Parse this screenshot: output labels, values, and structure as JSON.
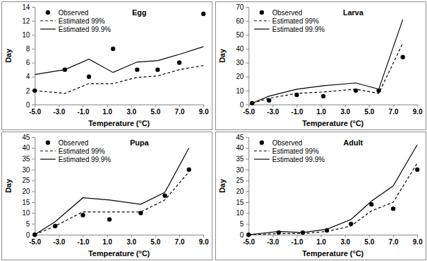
{
  "chart_data": [
    {
      "type": "line",
      "title": "Egg",
      "x_label": "Temperature (°C)",
      "y_label": "Day",
      "legend": "upper left",
      "grid": false,
      "x": [
        -5,
        -2.5,
        -0.5,
        1.5,
        3.5,
        5.2,
        7,
        9
      ],
      "xlim": [
        -5,
        9
      ],
      "xticks": [
        {
          "value": -5,
          "label": "-5.0"
        },
        {
          "value": -3,
          "label": "-3.0"
        },
        {
          "value": -1,
          "label": "-1.0"
        },
        {
          "value": 1,
          "label": "1.0"
        },
        {
          "value": 3,
          "label": "3.0"
        },
        {
          "value": 5,
          "label": "5.0"
        },
        {
          "value": 7,
          "label": "7.0"
        },
        {
          "value": 9,
          "label": "9.0"
        }
      ],
      "ylim": [
        0,
        14
      ],
      "yticks": [
        0,
        2,
        4,
        6,
        8,
        10,
        12,
        14
      ],
      "series": [
        {
          "name": "Observed",
          "type": "scatter",
          "marker": "circle",
          "color": "#000000",
          "values": [
            2,
            5,
            4,
            8,
            5,
            5,
            6,
            13
          ]
        },
        {
          "name": "Estimated 99%",
          "type": "line",
          "line_style": "dashed",
          "color": "#000000",
          "values": [
            2,
            1.6,
            3,
            3,
            3.9,
            4.1,
            5,
            5.6
          ]
        },
        {
          "name": "Estimated 99.9%",
          "type": "line",
          "line_style": "solid",
          "color": "#000000",
          "values": [
            4.3,
            5,
            6.5,
            4.6,
            6.1,
            6.3,
            7.2,
            8.3
          ]
        }
      ]
    },
    {
      "type": "line",
      "title": "Larva",
      "x_label": "Temperature (°C)",
      "y_label": "Day",
      "legend": "upper left",
      "grid": false,
      "x": [
        -4.7,
        -3.3,
        -1,
        1.2,
        3.9,
        5.8,
        7.8
      ],
      "xlim": [
        -5,
        9
      ],
      "xticks": [
        {
          "value": -5,
          "label": "-5.0"
        },
        {
          "value": -3,
          "label": "-3.0"
        },
        {
          "value": -1,
          "label": "-1.0"
        },
        {
          "value": 1,
          "label": "1.0"
        },
        {
          "value": 3,
          "label": "3.0"
        },
        {
          "value": 5,
          "label": "5.0"
        },
        {
          "value": 7,
          "label": "7.0"
        },
        {
          "value": 9,
          "label": "9.0"
        }
      ],
      "ylim": [
        0,
        70
      ],
      "yticks": [
        0,
        10,
        20,
        30,
        40,
        50,
        60,
        70
      ],
      "series": [
        {
          "name": "Observed",
          "type": "scatter",
          "marker": "circle",
          "color": "#000000",
          "values": [
            1,
            3,
            7,
            6,
            10,
            10,
            34
          ]
        },
        {
          "name": "Estimated 99%",
          "type": "line",
          "line_style": "dashed",
          "color": "#000000",
          "values": [
            1,
            4.5,
            8,
            9,
            11,
            8,
            44
          ]
        },
        {
          "name": "Estimated 99.9%",
          "type": "line",
          "line_style": "solid",
          "color": "#000000",
          "values": [
            1,
            6,
            11,
            13.5,
            15.5,
            11,
            61
          ]
        }
      ]
    },
    {
      "type": "line",
      "title": "Pupa",
      "x_label": "Temperature (°C)",
      "y_label": "Day",
      "legend": "upper left",
      "grid": false,
      "x": [
        -5,
        -3.3,
        -1,
        1.2,
        3.8,
        5.8,
        7.8
      ],
      "xlim": [
        -5,
        9
      ],
      "xticks": [
        {
          "value": -5,
          "label": "-5.0"
        },
        {
          "value": -3,
          "label": "-3.0"
        },
        {
          "value": -1,
          "label": "-1.0"
        },
        {
          "value": 1,
          "label": "1.0"
        },
        {
          "value": 3,
          "label": "3.0"
        },
        {
          "value": 5,
          "label": "5.0"
        },
        {
          "value": 7,
          "label": "7.0"
        },
        {
          "value": 9,
          "label": "9.0"
        }
      ],
      "ylim": [
        0,
        45
      ],
      "yticks": [
        0,
        5,
        10,
        15,
        20,
        25,
        30,
        35,
        40,
        45
      ],
      "series": [
        {
          "name": "Observed",
          "type": "scatter",
          "marker": "circle",
          "color": "#000000",
          "values": [
            0,
            4,
            9,
            7,
            10,
            18,
            30
          ]
        },
        {
          "name": "Estimated 99%",
          "type": "line",
          "line_style": "dashed",
          "color": "#000000",
          "values": [
            0,
            4,
            10.5,
            10.5,
            10.5,
            16,
            29
          ]
        },
        {
          "name": "Estimated 99.9%",
          "type": "line",
          "line_style": "solid",
          "color": "#000000",
          "values": [
            0,
            6,
            17,
            16,
            14,
            19.5,
            40
          ]
        }
      ]
    },
    {
      "type": "line",
      "title": "Adult",
      "x_label": "Temperature (°C)",
      "y_label": "Day",
      "legend": "upper left",
      "grid": false,
      "x": [
        -5,
        -2.5,
        -0.5,
        1.5,
        3.5,
        5.2,
        7,
        9
      ],
      "xlim": [
        -5,
        9
      ],
      "xticks": [
        {
          "value": -5,
          "label": "-5.0"
        },
        {
          "value": -3,
          "label": "-3.0"
        },
        {
          "value": -1,
          "label": "-1.0"
        },
        {
          "value": 1,
          "label": "1.0"
        },
        {
          "value": 3,
          "label": "3.0"
        },
        {
          "value": 5,
          "label": "5.0"
        },
        {
          "value": 7,
          "label": "7.0"
        },
        {
          "value": 9,
          "label": "9.0"
        }
      ],
      "ylim": [
        0,
        45
      ],
      "yticks": [
        0,
        5,
        10,
        15,
        20,
        25,
        30,
        35,
        40,
        45
      ],
      "series": [
        {
          "name": "Observed",
          "type": "scatter",
          "marker": "circle",
          "color": "#000000",
          "values": [
            0,
            1,
            1,
            2,
            5,
            14,
            12,
            30
          ]
        },
        {
          "name": "Estimated 99%",
          "type": "line",
          "line_style": "dashed",
          "color": "#000000",
          "values": [
            0,
            0.5,
            0.5,
            1.5,
            4,
            11,
            15,
            33
          ]
        },
        {
          "name": "Estimated 99.9%",
          "type": "line",
          "line_style": "solid",
          "color": "#000000",
          "values": [
            0,
            1.5,
            1,
            2.5,
            7,
            15.5,
            22.5,
            41.5
          ]
        }
      ]
    }
  ]
}
